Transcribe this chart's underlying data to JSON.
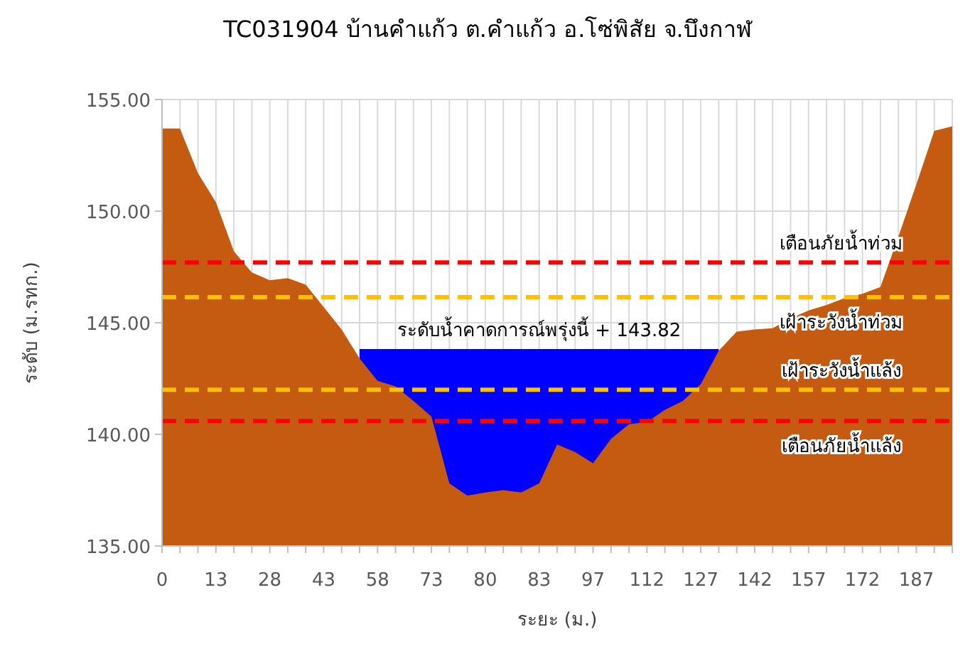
{
  "chart_data": {
    "type": "area",
    "title": "TC031904 บ้านคำแก้ว ต.คำแก้ว อ.โซ่พิสัย จ.บึงกาฬ",
    "xlabel": "ระยะ (ม.)",
    "ylabel": "ระดับ (ม.รทก.)",
    "categories": [
      "0",
      null,
      null,
      "13",
      null,
      null,
      "28",
      null,
      null,
      "43",
      null,
      null,
      "58",
      null,
      null,
      "73",
      null,
      null,
      "80",
      null,
      null,
      "83",
      null,
      null,
      "97",
      null,
      null,
      "112",
      null,
      null,
      "127",
      null,
      null,
      "142",
      null,
      null,
      "157",
      null,
      null,
      "172",
      null,
      null,
      "187",
      null,
      null
    ],
    "series": [
      {
        "color": "#0000ff",
        "values": [
          null,
          null,
          null,
          null,
          null,
          null,
          null,
          null,
          null,
          null,
          null,
          143.82,
          143.82,
          143.82,
          143.82,
          143.82,
          143.82,
          143.82,
          143.82,
          143.82,
          143.82,
          143.82,
          143.82,
          143.82,
          143.82,
          143.82,
          143.82,
          143.82,
          143.82,
          143.82,
          143.82,
          143.82,
          null,
          null,
          null,
          null,
          null,
          null,
          null,
          null,
          null,
          null,
          null,
          null,
          null
        ]
      },
      {
        "color": "#c55a11",
        "values": [
          153.7,
          153.7,
          151.7,
          150.4,
          148.2,
          147.25,
          146.9,
          147.0,
          146.7,
          145.7,
          144.7,
          143.4,
          142.4,
          142.15,
          141.5,
          140.8,
          137.8,
          137.25,
          137.4,
          137.5,
          137.4,
          137.8,
          139.55,
          139.2,
          138.7,
          139.8,
          140.45,
          140.55,
          141.1,
          141.5,
          142.25,
          143.75,
          144.6,
          144.7,
          144.75,
          145.2,
          145.55,
          145.8,
          146.1,
          146.3,
          146.6,
          148.85,
          151.2,
          153.6,
          153.8
        ]
      }
    ],
    "ylim": [
      135,
      155
    ],
    "yticks": [
      {
        "value": 135,
        "label": "135.00"
      },
      {
        "value": 140,
        "label": "140.00"
      },
      {
        "value": 145,
        "label": "145.00"
      },
      {
        "value": 150,
        "label": "150.00"
      },
      {
        "value": 155,
        "label": "155.00"
      }
    ],
    "grid": true,
    "ref_lines": [
      {
        "axis": "y",
        "value": 147.7,
        "label": "เตือนภัยน้ำท่วม",
        "color": "#ff0000",
        "line_style": "dashed"
      },
      {
        "axis": "y",
        "value": 146.15,
        "label": "เฝ้าระวังน้ำท่วม",
        "color": "#ffc000",
        "line_style": "dashed"
      },
      {
        "axis": "y",
        "value": 142.0,
        "label": "เฝ้าระวังน้ำแล้ง",
        "color": "#ffc000",
        "line_style": "dashed"
      },
      {
        "axis": "y",
        "value": 140.6,
        "label": "เตือนภัยน้ำแล้ง",
        "color": "#ff0000",
        "line_style": "dashed"
      }
    ],
    "annotations": [
      {
        "text": "ระดับน้ำคาดการณ์พรุ่งนี้ + 143.82",
        "y": 143.82
      }
    ]
  }
}
